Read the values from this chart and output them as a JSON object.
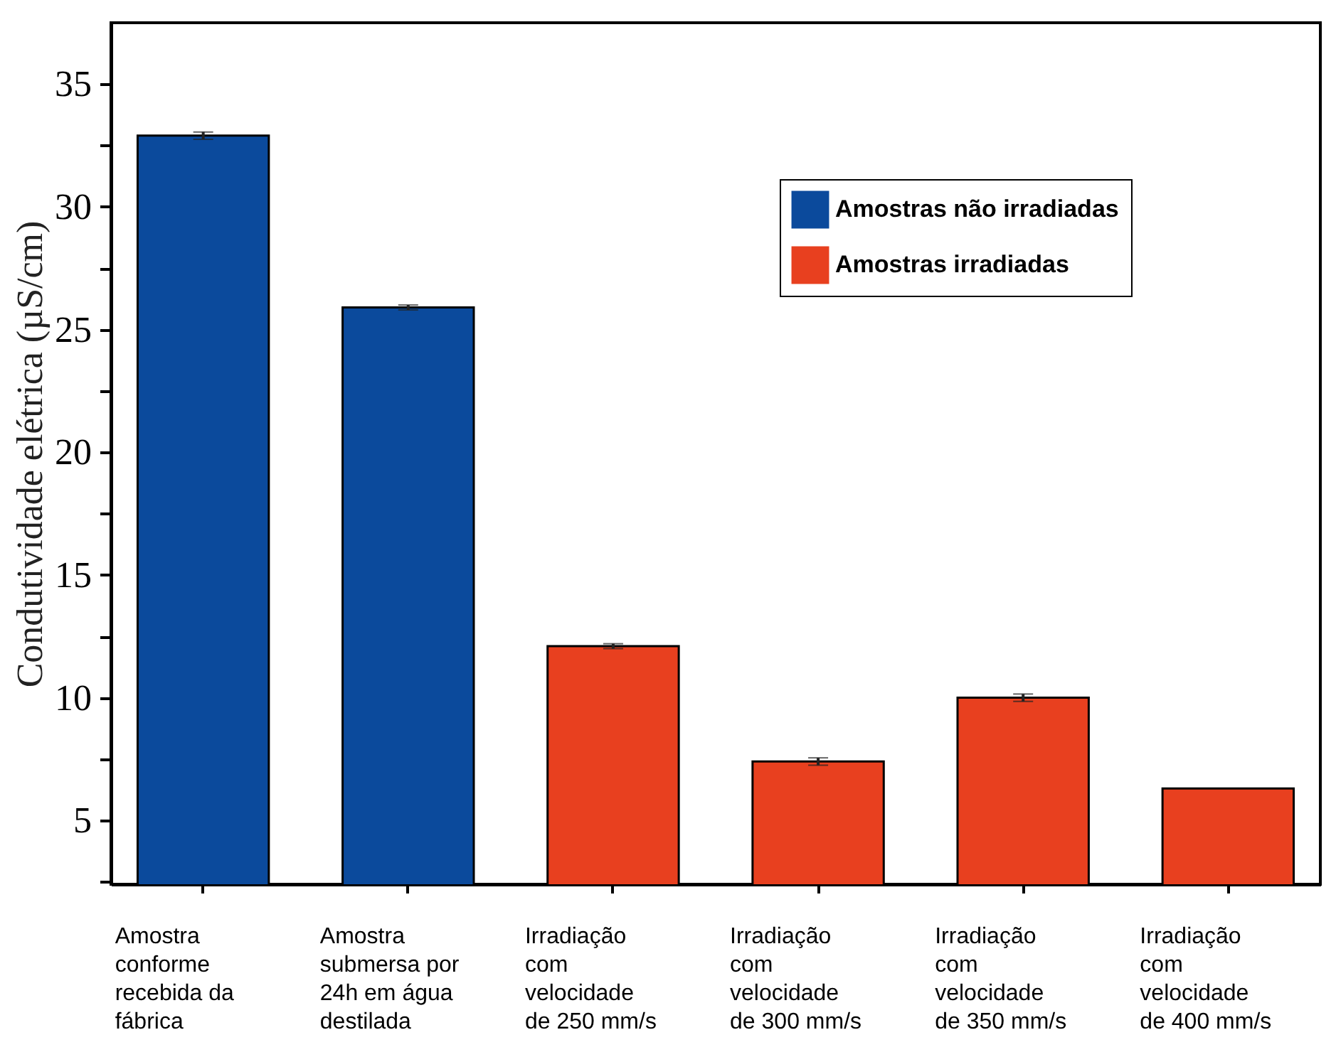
{
  "chart_data": {
    "type": "bar",
    "ylabel": "Condutividade elétrica (µS/cm)",
    "categories": [
      "Amostra conforme recebida da fábrica",
      "Amostra submersa por 24h em água destilada",
      "Irradiação com velocidade de 250 mm/s",
      "Irradiação com velocidade de 300 mm/s",
      "Irradiação com velocidade de 350 mm/s",
      "Irradiação com velocidade de 400 mm/s"
    ],
    "series": [
      {
        "name": "Amostras não irradiadas",
        "color": "#0b4a9c",
        "values": [
          32.9,
          25.9,
          null,
          null,
          null,
          null
        ],
        "errors": [
          0.15,
          0.1,
          null,
          null,
          null,
          null
        ]
      },
      {
        "name": "Amostras irradiadas",
        "color": "#e8401f",
        "values": [
          null,
          null,
          12.1,
          7.4,
          10,
          6.3
        ],
        "errors": [
          null,
          null,
          0.1,
          0.15,
          0.15,
          null
        ]
      }
    ],
    "ylim": [
      2.4,
      37.5
    ],
    "yticks": [
      {
        "value": 2.5,
        "label": null
      },
      5,
      {
        "value": 7.5,
        "label": null
      },
      10,
      {
        "value": 12.5,
        "label": null
      },
      15,
      {
        "value": 17.5,
        "label": null
      },
      20,
      {
        "value": 22.5,
        "label": null
      },
      25,
      {
        "value": 27.5,
        "label": null
      },
      30,
      {
        "value": 32.5,
        "label": null
      },
      35
    ],
    "grid": false,
    "legend": "top right"
  }
}
